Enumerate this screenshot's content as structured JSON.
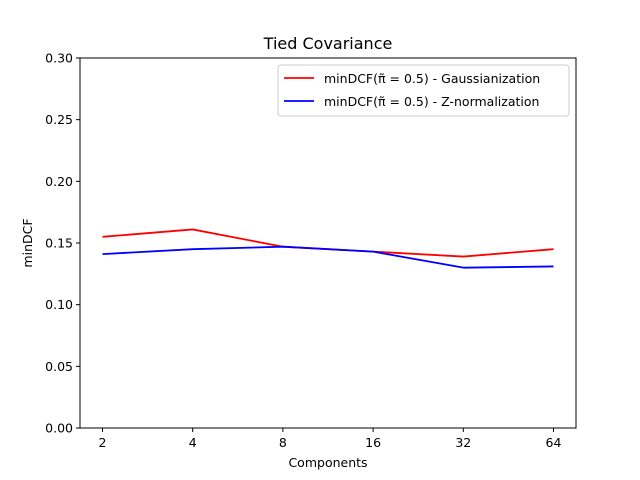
{
  "chart_data": {
    "type": "line",
    "title": "Tied Covariance",
    "xlabel": "Components",
    "ylabel": "minDCF",
    "categories": [
      "2",
      "4",
      "8",
      "16",
      "32",
      "64"
    ],
    "ylim": [
      0.0,
      0.3
    ],
    "yticks": [
      "0.00",
      "0.05",
      "0.10",
      "0.15",
      "0.20",
      "0.25",
      "0.30"
    ],
    "yticks_values": [
      0.0,
      0.05,
      0.1,
      0.15,
      0.2,
      0.25,
      0.3
    ],
    "grid": false,
    "legend_position": "top-right",
    "series": [
      {
        "name": "minDCF(π̃ = 0.5) - Gaussianization",
        "color": "#ff0000",
        "values": [
          0.155,
          0.161,
          0.147,
          0.143,
          0.139,
          0.145
        ]
      },
      {
        "name": "minDCF(π̃ = 0.5) - Z-normalization",
        "color": "#0000ff",
        "values": [
          0.141,
          0.145,
          0.147,
          0.143,
          0.13,
          0.131
        ]
      }
    ]
  }
}
